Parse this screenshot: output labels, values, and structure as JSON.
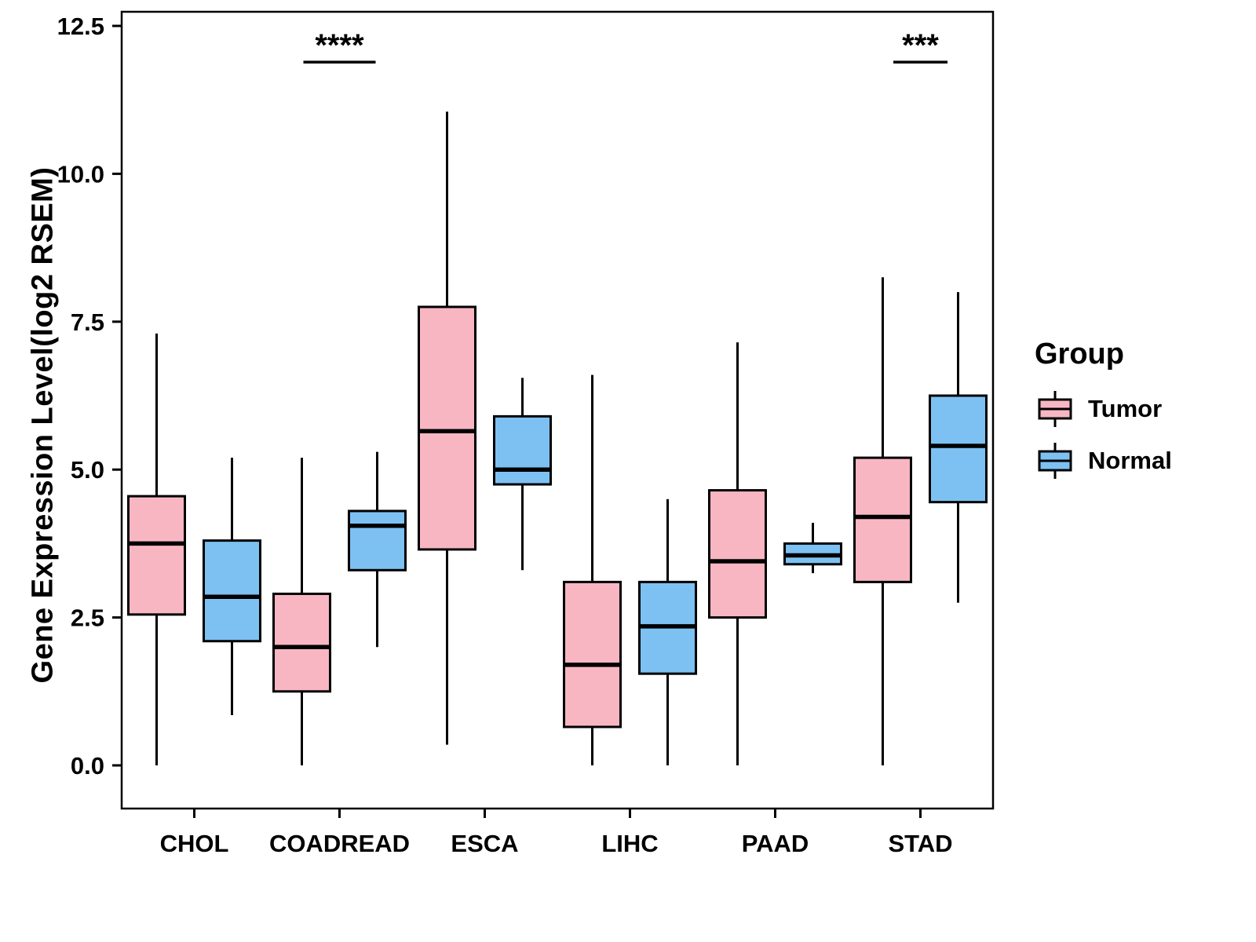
{
  "chart_data": {
    "type": "boxplot",
    "title": "",
    "xlabel": "",
    "ylabel": "Gene Expression Level(log2 RSEM)",
    "ylim": [
      0,
      12.5
    ],
    "yticks": [
      0.0,
      2.5,
      5.0,
      7.5,
      10.0,
      12.5
    ],
    "ytick_labels": [
      "0.0",
      "2.5",
      "5.0",
      "7.5",
      "10.0",
      "12.5"
    ],
    "categories": [
      "CHOL",
      "COADREAD",
      "ESCA",
      "LIHC",
      "PAAD",
      "STAD"
    ],
    "series": [
      {
        "name": "Tumor",
        "color": "#F8B6C3",
        "boxes": [
          {
            "low": 0.0,
            "q1": 2.55,
            "median": 3.75,
            "q3": 4.55,
            "high": 7.3
          },
          {
            "low": 0.0,
            "q1": 1.25,
            "median": 2.0,
            "q3": 2.9,
            "high": 5.2
          },
          {
            "low": 0.35,
            "q1": 3.65,
            "median": 5.65,
            "q3": 7.75,
            "high": 11.05
          },
          {
            "low": 0.0,
            "q1": 0.65,
            "median": 1.7,
            "q3": 3.1,
            "high": 6.6
          },
          {
            "low": 0.0,
            "q1": 2.5,
            "median": 3.45,
            "q3": 4.65,
            "high": 7.15
          },
          {
            "low": 0.0,
            "q1": 3.1,
            "median": 4.2,
            "q3": 5.2,
            "high": 8.25
          }
        ]
      },
      {
        "name": "Normal",
        "color": "#7DC1F2",
        "boxes": [
          {
            "low": 0.85,
            "q1": 2.1,
            "median": 2.85,
            "q3": 3.8,
            "high": 5.2
          },
          {
            "low": 2.0,
            "q1": 3.3,
            "median": 4.05,
            "q3": 4.3,
            "high": 5.3
          },
          {
            "low": 3.3,
            "q1": 4.75,
            "median": 5.0,
            "q3": 5.9,
            "high": 6.55
          },
          {
            "low": 0.0,
            "q1": 1.55,
            "median": 2.35,
            "q3": 3.1,
            "high": 4.5
          },
          {
            "low": 3.25,
            "q1": 3.4,
            "median": 3.55,
            "q3": 3.75,
            "high": 4.1
          },
          {
            "low": 2.75,
            "q1": 4.45,
            "median": 5.4,
            "q3": 6.25,
            "high": 8.0
          }
        ]
      }
    ],
    "annotations": [
      {
        "category": "COADREAD",
        "label": "****",
        "y": 12.1
      },
      {
        "category": "STAD",
        "label": "***",
        "y": 12.1
      }
    ],
    "legend": {
      "title": "Group",
      "position": "right",
      "entries": [
        "Tumor",
        "Normal"
      ]
    },
    "style": {
      "stroke_color": "#000000",
      "background": "#ffffff"
    }
  }
}
